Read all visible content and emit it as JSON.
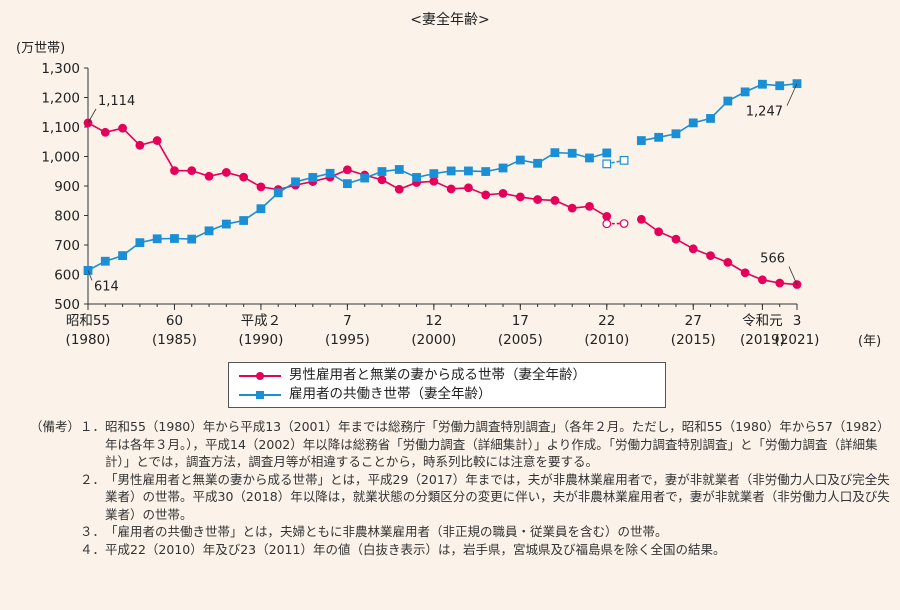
{
  "chart_data": {
    "type": "line",
    "title": "<妻全年齢>",
    "ylabel": "(万世帯)",
    "xlabel": "(年)",
    "ylim": [
      500,
      1300
    ],
    "yticks": [
      "500",
      "600",
      "700",
      "800",
      "900",
      "1,000",
      "1,100",
      "1,200",
      "1,300"
    ],
    "xlim": [
      1980,
      2021
    ],
    "xticks": [
      {
        "x": 1980,
        "line1": "昭和55",
        "line2": "(1980)"
      },
      {
        "x": 1985,
        "line1": "60",
        "line2": "(1985)"
      },
      {
        "x": 1990,
        "line1": "平成２",
        "line2": "(1990)"
      },
      {
        "x": 1995,
        "line1": "7",
        "line2": "(1995)"
      },
      {
        "x": 2000,
        "line1": "12",
        "line2": "(2000)"
      },
      {
        "x": 2005,
        "line1": "17",
        "line2": "(2005)"
      },
      {
        "x": 2010,
        "line1": "22",
        "line2": "(2010)"
      },
      {
        "x": 2015,
        "line1": "27",
        "line2": "(2015)"
      },
      {
        "x": 2019,
        "line1": "令和元",
        "line2": "(2019)"
      },
      {
        "x": 2021,
        "line1": "3",
        "line2": "(2021)"
      }
    ],
    "grid": false,
    "series": [
      {
        "name": "男性雇用者と無業の妻から成る世帯（妻全年齢）",
        "color": "#e5005a",
        "marker": "circle",
        "segments": [
          {
            "style": "solid",
            "x": [
              1980,
              1981,
              1982,
              1983,
              1984,
              1985,
              1986,
              1987,
              1988,
              1989,
              1990,
              1991,
              1992,
              1993,
              1994,
              1995,
              1996,
              1997,
              1998,
              1999,
              2000,
              2001,
              2002,
              2003,
              2004,
              2005,
              2006,
              2007,
              2008,
              2009,
              2010
            ],
            "y": [
              1114,
              1082,
              1096,
              1038,
              1054,
              952,
              952,
              933,
              946,
              930,
              897,
              888,
              903,
              915,
              930,
              955,
              937,
              921,
              889,
              912,
              916,
              890,
              894,
              870,
              875,
              863,
              854,
              851,
              825,
              831,
              797
            ]
          },
          {
            "style": "hollow",
            "x": [
              2010,
              2011
            ],
            "y": [
              772,
              773
            ]
          },
          {
            "style": "solid",
            "x": [
              2012,
              2013,
              2014,
              2015,
              2016,
              2017,
              2018,
              2019,
              2020,
              2021
            ],
            "y": [
              787,
              745,
              720,
              687,
              664,
              641,
              606,
              582,
              571,
              566
            ]
          }
        ]
      },
      {
        "name": "雇用者の共働き世帯（妻全年齢）",
        "color": "#1a8fd6",
        "marker": "square",
        "segments": [
          {
            "style": "solid",
            "x": [
              1980,
              1981,
              1982,
              1983,
              1984,
              1985,
              1986,
              1987,
              1988,
              1989,
              1990,
              1991,
              1992,
              1993,
              1994,
              1995,
              1996,
              1997,
              1998,
              1999,
              2000,
              2001,
              2002,
              2003,
              2004,
              2005,
              2006,
              2007,
              2008,
              2009,
              2010
            ],
            "y": [
              614,
              645,
              664,
              708,
              721,
              722,
              720,
              748,
              771,
              783,
              823,
              877,
              914,
              929,
              943,
              908,
              927,
              949,
              956,
              929,
              942,
              951,
              951,
              949,
              961,
              988,
              977,
              1013,
              1011,
              995,
              1012
            ]
          },
          {
            "style": "hollow",
            "x": [
              2010,
              2011
            ],
            "y": [
              975,
              987
            ]
          },
          {
            "style": "solid",
            "x": [
              2012,
              2013,
              2014,
              2015,
              2016,
              2017,
              2018,
              2019,
              2020,
              2021
            ],
            "y": [
              1054,
              1065,
              1077,
              1114,
              1129,
              1188,
              1219,
              1245,
              1240,
              1247
            ]
          }
        ]
      }
    ],
    "annotations": [
      {
        "text": "1,114",
        "series": 0,
        "x": 1980
      },
      {
        "text": "614",
        "series": 1,
        "x": 1980
      },
      {
        "text": "1,247",
        "series": 1,
        "x": 2021
      },
      {
        "text": "566",
        "series": 0,
        "x": 2021
      }
    ]
  },
  "notes": [
    {
      "head": "（備考）１．",
      "text": "昭和55（1980）年から平成13（2001）年までは総務庁「労働力調査特別調査」（各年２月。ただし，昭和55（1980）年から57（1982）年は各年３月。），平成14（2002）年以降は総務省「労働力調査（詳細集計）」より作成。「労働力調査特別調査」と「労働力調査（詳細集計）」とでは，調査方法，調査月等が相違することから，時系列比較には注意を要する。"
    },
    {
      "head": "　　　　２．",
      "text": "「男性雇用者と無業の妻から成る世帯」とは，平成29（2017）年までは，夫が非農林業雇用者で，妻が非就業者（非労働力人口及び完全失業者）の世帯。平成30（2018）年以降は，就業状態の分類区分の変更に伴い，夫が非農林業雇用者で，妻が非就業者（非労働力人口及び失業者）の世帯。"
    },
    {
      "head": "　　　　３．",
      "text": "「雇用者の共働き世帯」とは，夫婦ともに非農林業雇用者（非正規の職員・従業員を含む）の世帯。"
    },
    {
      "head": "　　　　４．",
      "text": "平成22（2010）年及び23（2011）年の値（白抜き表示）は，岩手県，宮城県及び福島県を除く全国の結果。"
    }
  ]
}
